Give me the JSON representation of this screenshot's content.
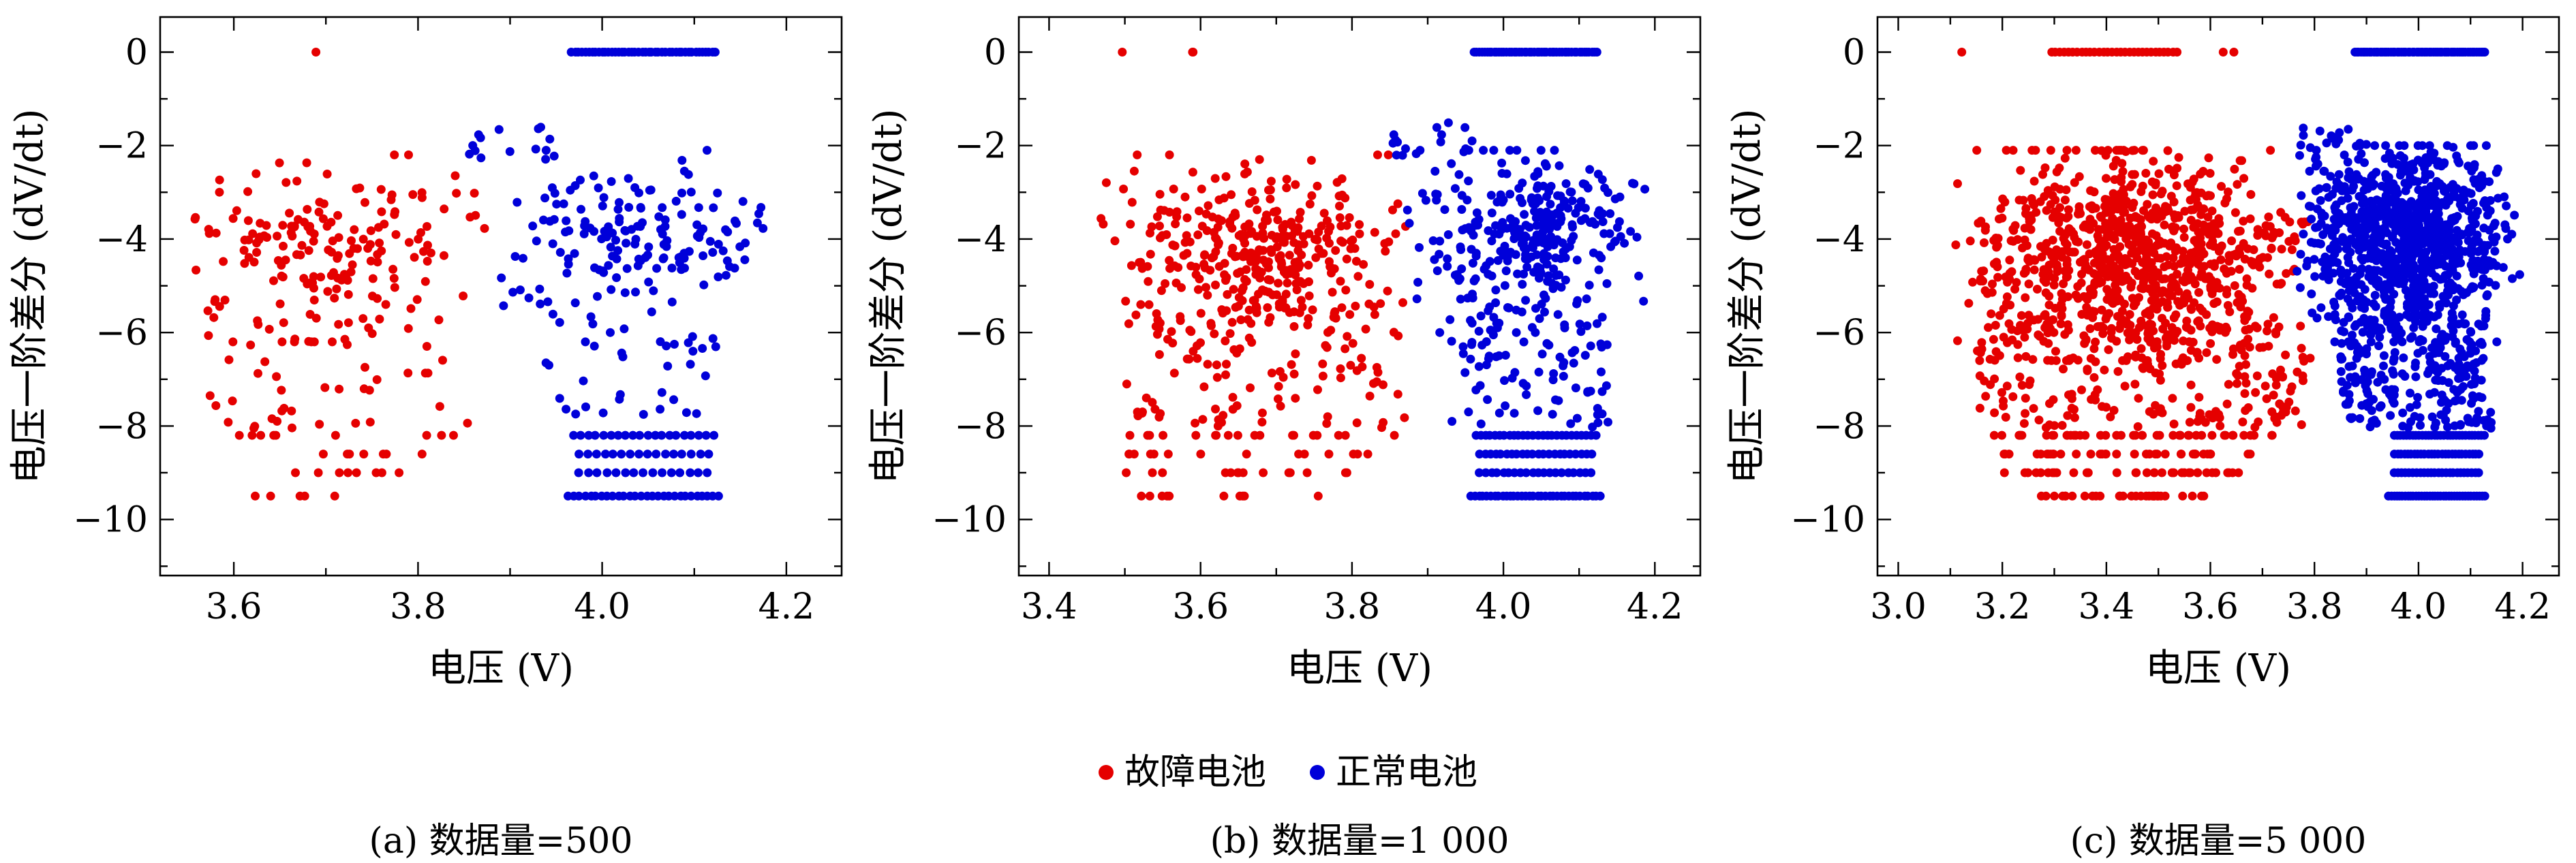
{
  "legend": {
    "items": [
      {
        "label": "故障电池",
        "color": "#e50000"
      },
      {
        "label": "正常电池",
        "color": "#0000d9"
      }
    ]
  },
  "chart_data": [
    {
      "type": "scatter",
      "caption": "(a) 数据量=500",
      "xlabel": "电压 (V)",
      "ylabel": "电压一阶差分 (dV/dt)",
      "xlim": [
        3.52,
        4.26
      ],
      "ylim": [
        -11.2,
        0.75
      ],
      "xticks": [
        3.6,
        3.8,
        4.0,
        4.2
      ],
      "yticks": [
        0,
        -2,
        -4,
        -6,
        -8,
        -10
      ],
      "x_minor": 0.1,
      "y_minor": 1,
      "grid": false,
      "series": [
        {
          "name": "故障电池",
          "color": "#e50000",
          "clusters": [
            {
              "type": "blob",
              "n": 170,
              "x": [
                3.53,
                3.88
              ],
              "y_mean": -4.1,
              "y_sd": 0.85,
              "y_clip": [
                -6.2,
                -2.2
              ]
            },
            {
              "type": "spread",
              "n": 50,
              "x": [
                3.57,
                3.86
              ],
              "y": [
                -8.05,
                -5.2
              ]
            },
            {
              "type": "row",
              "n": 1,
              "y": 0.0,
              "x": [
                3.685,
                3.695
              ]
            },
            {
              "type": "row",
              "n": 9,
              "y": -8.2,
              "x": [
                3.6,
                3.84
              ]
            },
            {
              "type": "row",
              "n": 7,
              "y": -8.6,
              "x": [
                3.62,
                3.84
              ]
            },
            {
              "type": "row",
              "n": 8,
              "y": -9.0,
              "x": [
                3.6,
                3.8
              ]
            },
            {
              "type": "row",
              "n": 5,
              "y": -9.5,
              "x": [
                3.62,
                3.73
              ]
            }
          ]
        },
        {
          "name": "正常电池",
          "color": "#0000d9",
          "clusters": [
            {
              "type": "blob",
              "n": 160,
              "x": [
                3.87,
                4.2
              ],
              "y_mean": -3.9,
              "y_sd": 0.85,
              "y_clip": [
                -5.9,
                -2.1
              ]
            },
            {
              "type": "spread",
              "n": 13,
              "x": [
                3.85,
                3.96
              ],
              "y": [
                -2.3,
                -1.5
              ]
            },
            {
              "type": "spread",
              "n": 38,
              "x": [
                3.93,
                4.13
              ],
              "y": [
                -8.05,
                -5.5
              ]
            },
            {
              "type": "row",
              "n": 44,
              "y": 0.0,
              "x": [
                3.965,
                4.125
              ],
              "even": true
            },
            {
              "type": "row",
              "n": 20,
              "y": -8.2,
              "x": [
                3.965,
                4.125
              ],
              "even": true
            },
            {
              "type": "row",
              "n": 16,
              "y": -8.6,
              "x": [
                3.97,
                4.12
              ],
              "even": true
            },
            {
              "type": "row",
              "n": 15,
              "y": -9.0,
              "x": [
                3.97,
                4.12
              ],
              "even": true
            },
            {
              "type": "row",
              "n": 28,
              "y": -9.5,
              "x": [
                3.96,
                4.13
              ],
              "even": true
            }
          ]
        }
      ]
    },
    {
      "type": "scatter",
      "caption": "(b) 数据量=1 000",
      "xlabel": "电压 (V)",
      "ylabel": "电压一阶差分 (dV/dt)",
      "xlim": [
        3.36,
        4.26
      ],
      "ylim": [
        -11.2,
        0.75
      ],
      "xticks": [
        3.4,
        3.6,
        3.8,
        4.0,
        4.2
      ],
      "yticks": [
        0,
        -2,
        -4,
        -6,
        -8,
        -10
      ],
      "x_minor": 0.1,
      "y_minor": 1,
      "grid": false,
      "series": [
        {
          "name": "故障电池",
          "color": "#e50000",
          "clusters": [
            {
              "type": "blob",
              "n": 340,
              "x": [
                3.46,
                3.88
              ],
              "y_mean": -4.2,
              "y_sd": 0.9,
              "y_clip": [
                -6.4,
                -2.2
              ]
            },
            {
              "type": "spread",
              "n": 110,
              "x": [
                3.5,
                3.87
              ],
              "y": [
                -8.05,
                -5.3
              ]
            },
            {
              "type": "row",
              "n": 3,
              "y": 0.0,
              "x": [
                3.46,
                3.7
              ]
            },
            {
              "type": "row",
              "n": 18,
              "y": -8.2,
              "x": [
                3.5,
                3.86
              ]
            },
            {
              "type": "row",
              "n": 14,
              "y": -8.6,
              "x": [
                3.5,
                3.84
              ]
            },
            {
              "type": "row",
              "n": 14,
              "y": -9.0,
              "x": [
                3.5,
                3.8
              ]
            },
            {
              "type": "row",
              "n": 10,
              "y": -9.5,
              "x": [
                3.52,
                3.76
              ]
            }
          ]
        },
        {
          "name": "正常电池",
          "color": "#0000d9",
          "clusters": [
            {
              "type": "blob",
              "n": 300,
              "x": [
                3.86,
                4.2
              ],
              "y_mean": -3.9,
              "y_sd": 0.9,
              "y_clip": [
                -6.0,
                -2.1
              ]
            },
            {
              "type": "spread",
              "n": 16,
              "x": [
                3.85,
                3.96
              ],
              "y": [
                -2.3,
                -1.5
              ]
            },
            {
              "type": "spread",
              "n": 90,
              "x": [
                3.93,
                4.14
              ],
              "y": [
                -8.05,
                -5.5
              ]
            },
            {
              "type": "row",
              "n": 50,
              "y": 0.0,
              "x": [
                3.96,
                4.125
              ],
              "even": true
            },
            {
              "type": "row",
              "n": 26,
              "y": -8.2,
              "x": [
                3.96,
                4.125
              ],
              "even": true
            },
            {
              "type": "row",
              "n": 22,
              "y": -8.6,
              "x": [
                3.965,
                4.12
              ],
              "even": true
            },
            {
              "type": "row",
              "n": 20,
              "y": -9.0,
              "x": [
                3.965,
                4.12
              ],
              "even": true
            },
            {
              "type": "row",
              "n": 34,
              "y": -9.5,
              "x": [
                3.955,
                4.13
              ],
              "even": true
            }
          ]
        }
      ]
    },
    {
      "type": "scatter",
      "caption": "(c) 数据量=5 000",
      "xlabel": "电压 (V)",
      "ylabel": "电压一阶差分 (dV/dt)",
      "xlim": [
        2.96,
        4.27
      ],
      "ylim": [
        -11.2,
        0.75
      ],
      "xticks": [
        3.0,
        3.2,
        3.4,
        3.6,
        3.8,
        4.0,
        4.2
      ],
      "yticks": [
        0,
        -2,
        -4,
        -6,
        -8,
        -10
      ],
      "x_minor": 0.1,
      "y_minor": 1,
      "grid": false,
      "series": [
        {
          "name": "故障电池",
          "color": "#e50000",
          "clusters": [
            {
              "type": "blob",
              "n": 850,
              "x": [
                3.1,
                3.8
              ],
              "y_mean": -4.3,
              "y_sd": 1.0,
              "y_clip": [
                -6.6,
                -2.1
              ]
            },
            {
              "type": "spread",
              "n": 260,
              "x": [
                3.15,
                3.78
              ],
              "y": [
                -8.05,
                -5.5
              ]
            },
            {
              "type": "row",
              "n": 30,
              "y": 0.0,
              "x": [
                3.29,
                3.54
              ],
              "even": true
            },
            {
              "type": "row",
              "n": 1,
              "y": 0.0,
              "x": [
                3.115,
                3.125
              ]
            },
            {
              "type": "row",
              "n": 2,
              "y": 0.0,
              "x": [
                3.62,
                3.68
              ]
            },
            {
              "type": "row",
              "n": 45,
              "y": -8.2,
              "x": [
                3.18,
                3.72
              ]
            },
            {
              "type": "row",
              "n": 38,
              "y": -8.6,
              "x": [
                3.2,
                3.7
              ]
            },
            {
              "type": "row",
              "n": 36,
              "y": -9.0,
              "x": [
                3.2,
                3.66
              ]
            },
            {
              "type": "row",
              "n": 30,
              "y": -9.5,
              "x": [
                3.22,
                3.6
              ]
            }
          ]
        },
        {
          "name": "正常电池",
          "color": "#0000d9",
          "clusters": [
            {
              "type": "blob",
              "n": 900,
              "x": [
                3.76,
                4.2
              ],
              "y_mean": -4.0,
              "y_sd": 1.0,
              "y_clip": [
                -6.2,
                -2.0
              ]
            },
            {
              "type": "spread",
              "n": 20,
              "x": [
                3.76,
                3.92
              ],
              "y": [
                -2.3,
                -1.6
              ]
            },
            {
              "type": "spread",
              "n": 250,
              "x": [
                3.85,
                4.14
              ],
              "y": [
                -8.05,
                -5.6
              ]
            },
            {
              "type": "row",
              "n": 62,
              "y": 0.0,
              "x": [
                3.875,
                4.13
              ],
              "even": true
            },
            {
              "type": "row",
              "n": 30,
              "y": -8.2,
              "x": [
                3.95,
                4.13
              ],
              "even": true
            },
            {
              "type": "row",
              "n": 26,
              "y": -8.6,
              "x": [
                3.95,
                4.12
              ],
              "even": true
            },
            {
              "type": "row",
              "n": 24,
              "y": -9.0,
              "x": [
                3.95,
                4.12
              ],
              "even": true
            },
            {
              "type": "row",
              "n": 36,
              "y": -9.5,
              "x": [
                3.94,
                4.13
              ],
              "even": true
            }
          ]
        }
      ]
    }
  ]
}
